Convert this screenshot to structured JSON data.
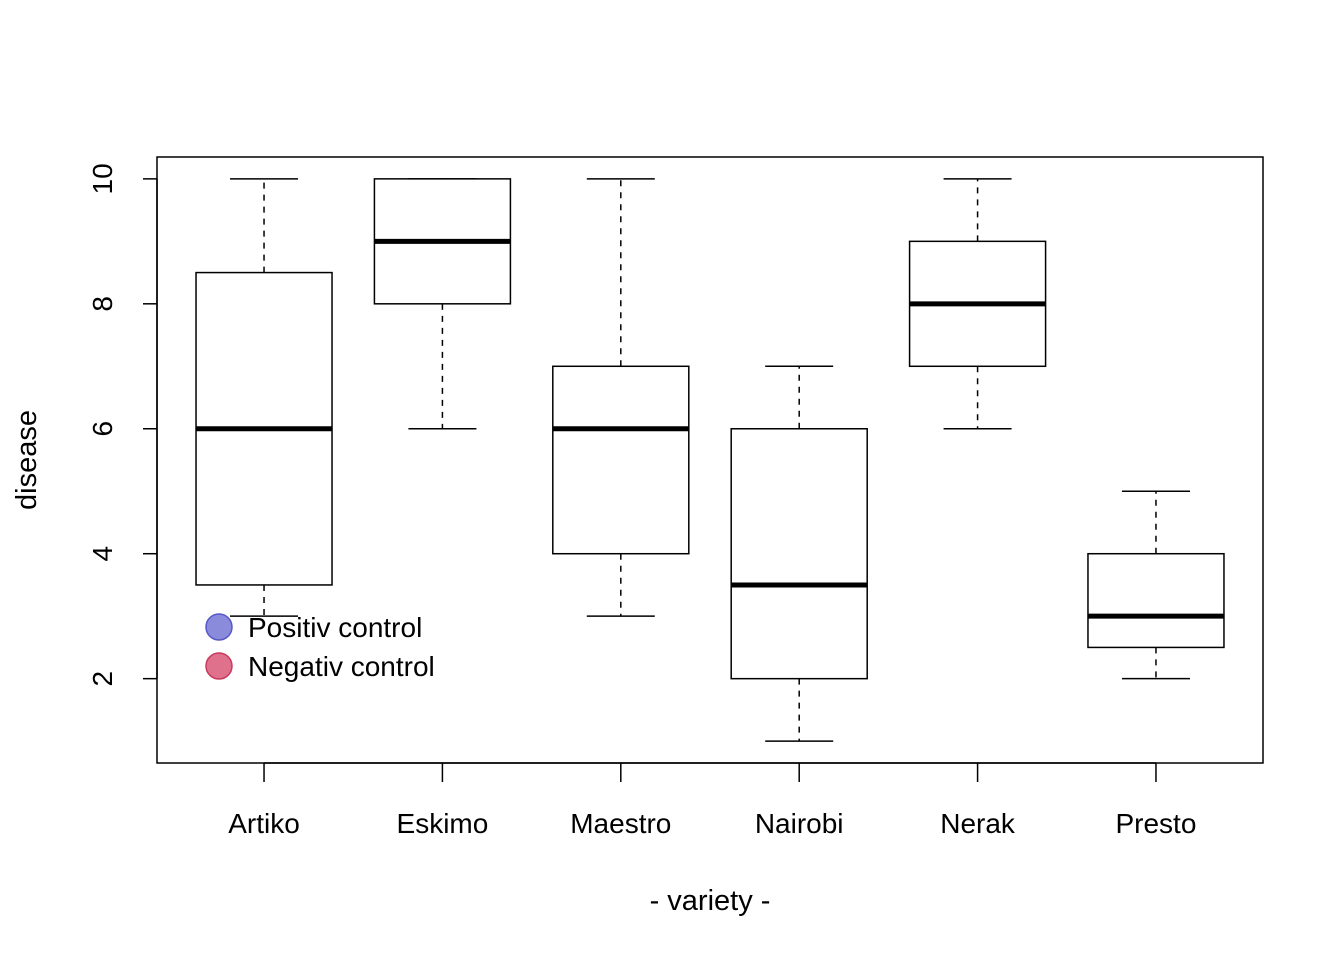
{
  "chart_data": {
    "type": "boxplot",
    "title": "",
    "xlabel": "- variety -",
    "ylabel": "disease",
    "ylim": [
      0.65,
      10.35
    ],
    "yticks": [
      2,
      4,
      6,
      8,
      10
    ],
    "grid": false,
    "categories": [
      "Artiko",
      "Eskimo",
      "Maestro",
      "Nairobi",
      "Nerak",
      "Presto"
    ],
    "boxes": [
      {
        "category": "Artiko",
        "min": 3,
        "q1": 3.5,
        "median": 6,
        "q3": 8.5,
        "max": 10
      },
      {
        "category": "Eskimo",
        "min": 6,
        "q1": 8,
        "median": 9,
        "q3": 10,
        "max": 10
      },
      {
        "category": "Maestro",
        "min": 3,
        "q1": 4,
        "median": 6,
        "q3": 7,
        "max": 10
      },
      {
        "category": "Nairobi",
        "min": 1,
        "q1": 2,
        "median": 3.5,
        "q3": 6,
        "max": 7
      },
      {
        "category": "Nerak",
        "min": 6,
        "q1": 7,
        "median": 8,
        "q3": 9,
        "max": 10
      },
      {
        "category": "Presto",
        "min": 2,
        "q1": 2.5,
        "median": 3,
        "q3": 4,
        "max": 5
      }
    ],
    "legend": {
      "placement": "bottom-left",
      "entries": [
        {
          "label": "Positiv control",
          "color": "#8b8bdc"
        },
        {
          "label": "Negativ control",
          "color": "#e0718c"
        }
      ]
    }
  },
  "colors": {
    "box_fill": "#ffffff",
    "stroke": "#000000",
    "legend_positive_border": "#5858c8",
    "legend_negative_border": "#c83a5e"
  }
}
